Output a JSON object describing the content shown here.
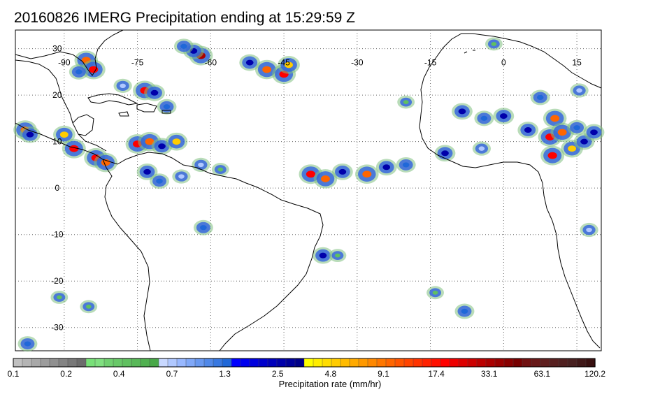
{
  "title": "20160826 IMERG Precipitation ending at 15:29:59 Z",
  "map": {
    "lon_range": [
      -100,
      20
    ],
    "lat_range": [
      -35,
      34
    ],
    "lon_ticks": [
      {
        "value": -90,
        "label": "-90"
      },
      {
        "value": -75,
        "label": "-75"
      },
      {
        "value": -60,
        "label": "-60"
      },
      {
        "value": -45,
        "label": "-45"
      },
      {
        "value": -30,
        "label": "-30"
      },
      {
        "value": -15,
        "label": "-15"
      },
      {
        "value": 0,
        "label": "0"
      },
      {
        "value": 15,
        "label": "15"
      }
    ],
    "lat_ticks": [
      {
        "value": 30,
        "label": "30"
      },
      {
        "value": 20,
        "label": "20"
      },
      {
        "value": 10,
        "label": "10"
      },
      {
        "value": 0,
        "label": "0"
      },
      {
        "value": -10,
        "label": "-10"
      },
      {
        "value": -20,
        "label": "-20"
      },
      {
        "value": -30,
        "label": "-30"
      }
    ],
    "grid": true,
    "grid_style": "dotted",
    "precip_cells": [
      {
        "lon": -85.5,
        "lat": 27.5,
        "rate": 9.1
      },
      {
        "lon": -84.0,
        "lat": 25.5,
        "rate": 17.4
      },
      {
        "lon": -87.0,
        "lat": 25.0,
        "rate": 1.3
      },
      {
        "lon": -62.0,
        "lat": 28.5,
        "rate": 33.1
      },
      {
        "lon": -63.5,
        "lat": 29.5,
        "rate": 2.5
      },
      {
        "lon": -65.5,
        "lat": 30.5,
        "rate": 1.3
      },
      {
        "lon": -52.0,
        "lat": 27.0,
        "rate": 2.5
      },
      {
        "lon": -48.5,
        "lat": 25.5,
        "rate": 9.1
      },
      {
        "lon": -45.0,
        "lat": 24.5,
        "rate": 17.4
      },
      {
        "lon": -44.0,
        "lat": 26.5,
        "rate": 4.8
      },
      {
        "lon": -73.5,
        "lat": 21.0,
        "rate": 17.4
      },
      {
        "lon": -71.5,
        "lat": 20.5,
        "rate": 2.5
      },
      {
        "lon": -69.0,
        "lat": 17.5,
        "rate": 1.3
      },
      {
        "lon": -78.0,
        "lat": 22.0,
        "rate": 0.7
      },
      {
        "lon": -98.0,
        "lat": 12.5,
        "rate": 9.1
      },
      {
        "lon": -97.0,
        "lat": 11.5,
        "rate": 2.5
      },
      {
        "lon": -90.0,
        "lat": 11.5,
        "rate": 4.8
      },
      {
        "lon": -88.0,
        "lat": 8.5,
        "rate": 17.4
      },
      {
        "lon": -83.5,
        "lat": 6.5,
        "rate": 17.4
      },
      {
        "lon": -81.5,
        "lat": 5.5,
        "rate": 9.1
      },
      {
        "lon": -75.0,
        "lat": 9.5,
        "rate": 17.4
      },
      {
        "lon": -72.5,
        "lat": 10.0,
        "rate": 9.1
      },
      {
        "lon": -70.0,
        "lat": 9.0,
        "rate": 2.5
      },
      {
        "lon": -67.0,
        "lat": 10.0,
        "rate": 4.8
      },
      {
        "lon": -73.0,
        "lat": 3.5,
        "rate": 2.5
      },
      {
        "lon": -70.5,
        "lat": 1.5,
        "rate": 1.3
      },
      {
        "lon": -66.0,
        "lat": 2.5,
        "rate": 0.7
      },
      {
        "lon": -62.0,
        "lat": 5.0,
        "rate": 0.7
      },
      {
        "lon": -58.0,
        "lat": 4.0,
        "rate": 0.4
      },
      {
        "lon": -39.5,
        "lat": 3.0,
        "rate": 17.4
      },
      {
        "lon": -36.5,
        "lat": 2.0,
        "rate": 9.1
      },
      {
        "lon": -33.0,
        "lat": 3.5,
        "rate": 2.5
      },
      {
        "lon": -28.0,
        "lat": 3.0,
        "rate": 9.1
      },
      {
        "lon": -24.0,
        "lat": 4.5,
        "rate": 2.5
      },
      {
        "lon": -20.0,
        "lat": 5.0,
        "rate": 1.3
      },
      {
        "lon": -12.0,
        "lat": 7.5,
        "rate": 2.5
      },
      {
        "lon": -8.5,
        "lat": 16.5,
        "rate": 2.5
      },
      {
        "lon": -4.0,
        "lat": 15.0,
        "rate": 1.3
      },
      {
        "lon": 0.0,
        "lat": 15.5,
        "rate": 2.5
      },
      {
        "lon": 5.0,
        "lat": 12.5,
        "rate": 2.5
      },
      {
        "lon": 10.5,
        "lat": 15.0,
        "rate": 9.1
      },
      {
        "lon": 9.5,
        "lat": 11.0,
        "rate": 17.4
      },
      {
        "lon": 12.0,
        "lat": 12.0,
        "rate": 9.1
      },
      {
        "lon": 10.0,
        "lat": 7.0,
        "rate": 17.4
      },
      {
        "lon": 14.0,
        "lat": 8.5,
        "rate": 4.8
      },
      {
        "lon": 16.5,
        "lat": 10.0,
        "rate": 2.5
      },
      {
        "lon": 15.0,
        "lat": 13.0,
        "rate": 1.3
      },
      {
        "lon": 18.5,
        "lat": 12.0,
        "rate": 2.5
      },
      {
        "lon": 7.5,
        "lat": 19.5,
        "rate": 1.3
      },
      {
        "lon": 15.5,
        "lat": 21.0,
        "rate": 0.7
      },
      {
        "lon": -4.5,
        "lat": 8.5,
        "rate": 0.7
      },
      {
        "lon": -61.5,
        "lat": -8.5,
        "rate": 1.3
      },
      {
        "lon": -37.0,
        "lat": -14.5,
        "rate": 2.5
      },
      {
        "lon": -34.0,
        "lat": -14.5,
        "rate": 0.4
      },
      {
        "lon": -91.0,
        "lat": -23.5,
        "rate": 0.4
      },
      {
        "lon": -85.0,
        "lat": -25.5,
        "rate": 0.4
      },
      {
        "lon": -97.5,
        "lat": -33.5,
        "rate": 1.3
      },
      {
        "lon": -8.0,
        "lat": -26.5,
        "rate": 1.3
      },
      {
        "lon": -14.0,
        "lat": -22.5,
        "rate": 0.4
      },
      {
        "lon": 17.5,
        "lat": -9.0,
        "rate": 0.7
      },
      {
        "lon": -20.0,
        "lat": 18.5,
        "rate": 0.4
      },
      {
        "lon": -2.0,
        "lat": 31.0,
        "rate": 0.4
      }
    ]
  },
  "colorbar": {
    "colors": [
      "#c0c0c0",
      "#b4b4b4",
      "#a8a8a8",
      "#9c9c9c",
      "#909090",
      "#848484",
      "#787878",
      "#6c6c6c",
      "#78e078",
      "#80e080",
      "#70d070",
      "#68c868",
      "#60c060",
      "#58b858",
      "#50b050",
      "#48a848",
      "#c8d8ff",
      "#b0c8ff",
      "#98b8ff",
      "#80a8f8",
      "#6898f0",
      "#5088e8",
      "#3878e0",
      "#2068d8",
      "#0000ff",
      "#0000ee",
      "#0000dd",
      "#0000cc",
      "#0000bb",
      "#0000aa",
      "#000099",
      "#000088",
      "#ffff00",
      "#ffee00",
      "#ffdd00",
      "#ffcc00",
      "#ffbb00",
      "#ffaa00",
      "#ff9900",
      "#ff8800",
      "#ff7700",
      "#ff6600",
      "#ff5500",
      "#ff4400",
      "#ff3300",
      "#ff2200",
      "#ff1100",
      "#ff0000",
      "#ee0000",
      "#dd0000",
      "#cc0000",
      "#bb0000",
      "#aa0000",
      "#990000",
      "#880000",
      "#770000",
      "#701010",
      "#681818",
      "#602020",
      "#582020",
      "#502020",
      "#482020",
      "#401818",
      "#381010"
    ],
    "tick_labels": [
      "0.1",
      "0.2",
      "0.4",
      "0.7",
      "1.3",
      "2.5",
      "4.8",
      "9.1",
      "17.4",
      "33.1",
      "63.1",
      "120.2"
    ],
    "title": "Precipitation rate (mm/hr)"
  }
}
